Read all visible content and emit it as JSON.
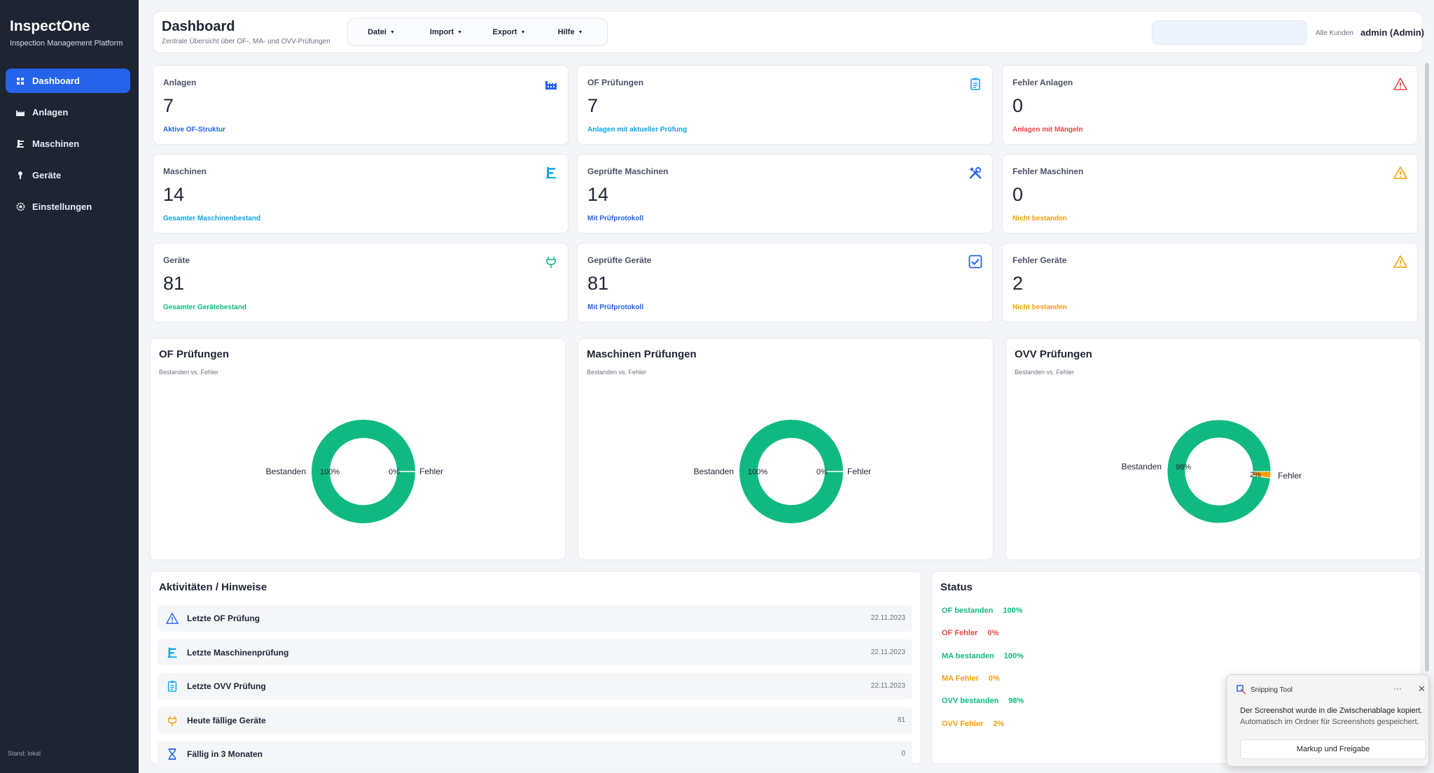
{
  "app": {
    "name": "InspectOne",
    "subtitle": "Inspection Management Platform",
    "footer": "Stand: lokal"
  },
  "sidebar": {
    "items": [
      {
        "label": "Dashboard",
        "icon": "grid-icon",
        "active": true
      },
      {
        "label": "Anlagen",
        "icon": "factory-icon"
      },
      {
        "label": "Maschinen",
        "icon": "machine-icon"
      },
      {
        "label": "Geräte",
        "icon": "pin-icon"
      },
      {
        "label": "Einstellungen",
        "icon": "gear-icon"
      }
    ]
  },
  "header": {
    "title": "Dashboard",
    "subtitle": "Zentrale Übersicht über OF-, MA- und OVV-Prüfungen",
    "menus": [
      "Datei",
      "Import",
      "Export",
      "Hilfe"
    ],
    "customers": "Alle Kunden",
    "user": "admin (Admin)"
  },
  "colors": {
    "accent": "#2563eb",
    "success": "#10b981",
    "danger": "#ef4444",
    "warning": "#f59e0b",
    "info": "#0ea5e9"
  },
  "cards": [
    {
      "label": "Anlagen",
      "value": "7",
      "desc": "Aktive OF-Struktur",
      "desc_color": "#2563eb",
      "icon": "factory-icon"
    },
    {
      "label": "OF Prüfungen",
      "value": "7",
      "desc": "Anlagen mit aktueller Prüfung",
      "desc_color": "#0ea5e9",
      "icon": "clipboard-icon"
    },
    {
      "label": "Fehler Anlagen",
      "value": "0",
      "desc": "Anlagen mit Mängeln",
      "desc_color": "#ef4444",
      "icon": "warning-icon"
    },
    {
      "label": "Maschinen",
      "value": "14",
      "desc": "Gesamter Maschinenbestand",
      "desc_color": "#0ea5e9",
      "icon": "machine-icon"
    },
    {
      "label": "Geprüfte Maschinen",
      "value": "14",
      "desc": "Mit Prüfprotokoll",
      "desc_color": "#2563eb",
      "icon": "tools-icon"
    },
    {
      "label": "Fehler Maschinen",
      "value": "0",
      "desc": "Nicht bestanden",
      "desc_color": "#f59e0b",
      "icon": "warning-icon"
    },
    {
      "label": "Geräte",
      "value": "81",
      "desc": "Gesamter Gerätebestand",
      "desc_color": "#10b981",
      "icon": "plug-icon"
    },
    {
      "label": "Geprüfte Geräte",
      "value": "81",
      "desc": "Mit Prüfprotokoll",
      "desc_color": "#2563eb",
      "icon": "checkbox-icon"
    },
    {
      "label": "Fehler Geräte",
      "value": "2",
      "desc": "Nicht bestanden",
      "desc_color": "#f59e0b",
      "icon": "warning-icon"
    }
  ],
  "chart_data": [
    {
      "type": "pie",
      "title": "OF Prüfungen",
      "subtitle": "Bestanden vs. Fehler",
      "categories": [
        "Bestanden",
        "Fehler"
      ],
      "values": [
        100,
        0
      ],
      "value_labels": [
        "100%",
        "0%"
      ],
      "colors": [
        "#10b981",
        "#f59e0b"
      ]
    },
    {
      "type": "pie",
      "title": "Maschinen Prüfungen",
      "subtitle": "Bestanden vs. Fehler",
      "categories": [
        "Bestanden",
        "Fehler"
      ],
      "values": [
        100,
        0
      ],
      "value_labels": [
        "100%",
        "0%"
      ],
      "colors": [
        "#10b981",
        "#f59e0b"
      ]
    },
    {
      "type": "pie",
      "title": "OVV Prüfungen",
      "subtitle": "Bestanden vs. Fehler",
      "categories": [
        "Bestanden",
        "Fehler"
      ],
      "values": [
        98,
        2
      ],
      "value_labels": [
        "98%",
        "2%"
      ],
      "colors": [
        "#10b981",
        "#f59e0b"
      ]
    }
  ],
  "activities": {
    "title": "Aktivitäten / Hinweise",
    "rows": [
      {
        "label": "Letzte OF Prüfung",
        "value": "22.11.2023",
        "icon": "warning-icon"
      },
      {
        "label": "Letzte Maschinenprüfung",
        "value": "22.11.2023",
        "icon": "machine-icon"
      },
      {
        "label": "Letzte OVV Prüfung",
        "value": "22.11.2023",
        "icon": "clipboard-icon"
      },
      {
        "label": "Heute fällige Geräte",
        "value": "81",
        "icon": "plug-icon"
      },
      {
        "label": "Fällig in 3 Monaten",
        "value": "0",
        "icon": "hourglass-icon"
      }
    ]
  },
  "status": {
    "title": "Status",
    "rows": [
      {
        "label": "OF bestanden",
        "value": "100%",
        "color": "#10b981"
      },
      {
        "label": "OF Fehler",
        "value": "0%",
        "color": "#ef4444"
      },
      {
        "label": "MA bestanden",
        "value": "100%",
        "color": "#10b981"
      },
      {
        "label": "MA Fehler",
        "value": "0%",
        "color": "#f59e0b"
      },
      {
        "label": "OVV bestanden",
        "value": "98%",
        "color": "#10b981"
      },
      {
        "label": "OVV Fehler",
        "value": "2%",
        "color": "#f59e0b"
      }
    ]
  },
  "toast": {
    "app": "Snipping Tool",
    "more": "···",
    "close": "✕",
    "message": "Der Screenshot wurde in die Zwischenablage kopiert.",
    "detail": "Automatisch im Ordner für Screenshots gespeichert.",
    "button": "Markup und Freigabe"
  }
}
